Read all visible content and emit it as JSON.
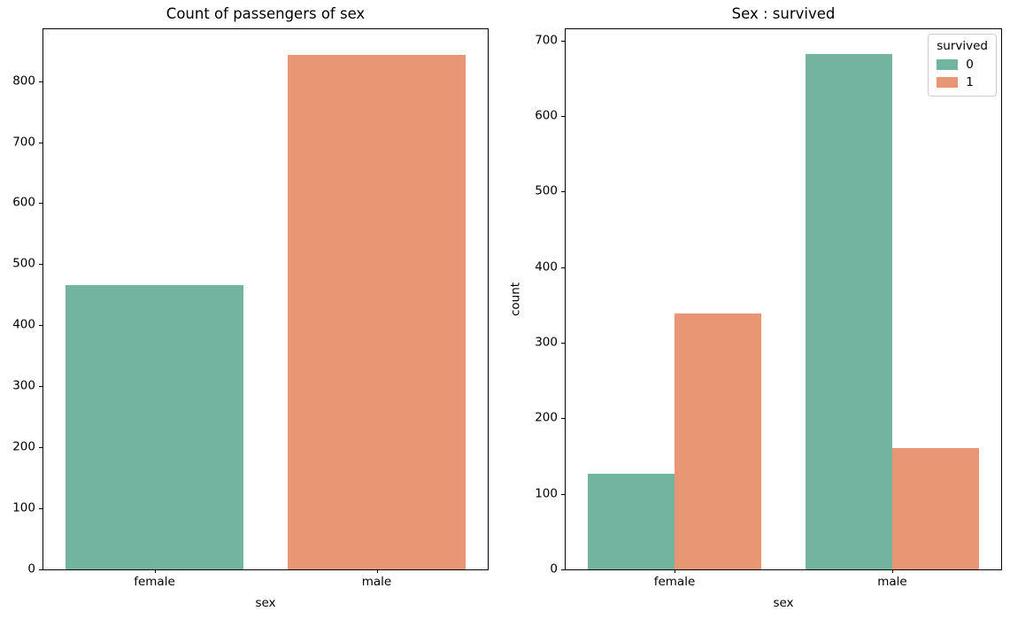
{
  "figure": {
    "background": "#ffffff",
    "text_color": "#000000"
  },
  "palette": {
    "teal": "#71b5a0",
    "salmon": "#e99674"
  },
  "chart_data": [
    {
      "type": "bar",
      "title": "Count of passengers of sex",
      "xlabel": "sex",
      "ylabel": "",
      "categories": [
        "female",
        "male"
      ],
      "values": [
        466,
        843
      ],
      "bar_colors": [
        "#71b5a0",
        "#e99674"
      ],
      "yticks": [
        0,
        100,
        200,
        300,
        400,
        500,
        600,
        700,
        800
      ],
      "ylim": [
        0,
        885
      ],
      "grid": false,
      "legend": null
    },
    {
      "type": "bar",
      "title": "Sex : survived",
      "xlabel": "sex",
      "ylabel": "count",
      "categories": [
        "female",
        "male"
      ],
      "series": [
        {
          "name": "0",
          "values": [
            127,
            682
          ],
          "color": "#71b5a0"
        },
        {
          "name": "1",
          "values": [
            339,
            161
          ],
          "color": "#e99674"
        }
      ],
      "yticks": [
        0,
        100,
        200,
        300,
        400,
        500,
        600,
        700
      ],
      "ylim": [
        0,
        715
      ],
      "grid": false,
      "legend": {
        "title": "survived",
        "position": "upper right"
      }
    }
  ]
}
